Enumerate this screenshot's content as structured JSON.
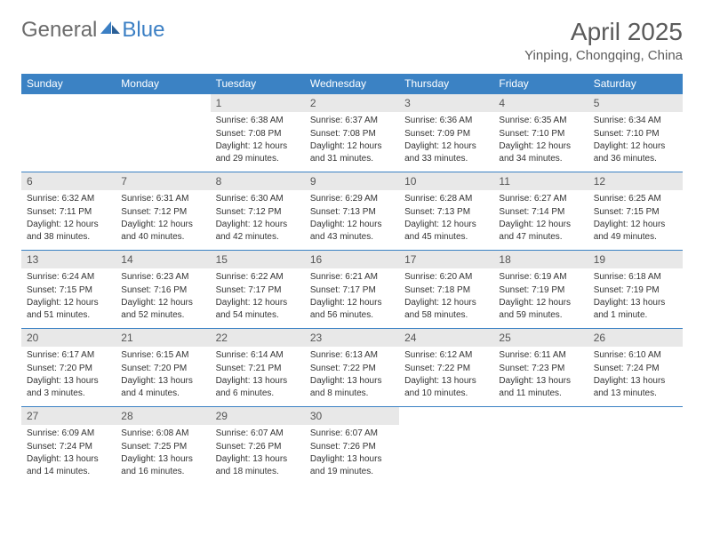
{
  "logo": {
    "text1": "General",
    "text2": "Blue"
  },
  "title": "April 2025",
  "location": "Yinping, Chongqing, China",
  "colors": {
    "header_bg": "#3b82c4",
    "header_text": "#ffffff",
    "daynum_bg": "#e8e8e8",
    "row_border": "#3b82c4",
    "logo_gray": "#6b6b6b",
    "logo_blue": "#3b7fc4"
  },
  "weekdays": [
    "Sunday",
    "Monday",
    "Tuesday",
    "Wednesday",
    "Thursday",
    "Friday",
    "Saturday"
  ],
  "weeks": [
    [
      {
        "empty": true
      },
      {
        "empty": true
      },
      {
        "day": "1",
        "sunrise": "Sunrise: 6:38 AM",
        "sunset": "Sunset: 7:08 PM",
        "daylight": "Daylight: 12 hours and 29 minutes."
      },
      {
        "day": "2",
        "sunrise": "Sunrise: 6:37 AM",
        "sunset": "Sunset: 7:08 PM",
        "daylight": "Daylight: 12 hours and 31 minutes."
      },
      {
        "day": "3",
        "sunrise": "Sunrise: 6:36 AM",
        "sunset": "Sunset: 7:09 PM",
        "daylight": "Daylight: 12 hours and 33 minutes."
      },
      {
        "day": "4",
        "sunrise": "Sunrise: 6:35 AM",
        "sunset": "Sunset: 7:10 PM",
        "daylight": "Daylight: 12 hours and 34 minutes."
      },
      {
        "day": "5",
        "sunrise": "Sunrise: 6:34 AM",
        "sunset": "Sunset: 7:10 PM",
        "daylight": "Daylight: 12 hours and 36 minutes."
      }
    ],
    [
      {
        "day": "6",
        "sunrise": "Sunrise: 6:32 AM",
        "sunset": "Sunset: 7:11 PM",
        "daylight": "Daylight: 12 hours and 38 minutes."
      },
      {
        "day": "7",
        "sunrise": "Sunrise: 6:31 AM",
        "sunset": "Sunset: 7:12 PM",
        "daylight": "Daylight: 12 hours and 40 minutes."
      },
      {
        "day": "8",
        "sunrise": "Sunrise: 6:30 AM",
        "sunset": "Sunset: 7:12 PM",
        "daylight": "Daylight: 12 hours and 42 minutes."
      },
      {
        "day": "9",
        "sunrise": "Sunrise: 6:29 AM",
        "sunset": "Sunset: 7:13 PM",
        "daylight": "Daylight: 12 hours and 43 minutes."
      },
      {
        "day": "10",
        "sunrise": "Sunrise: 6:28 AM",
        "sunset": "Sunset: 7:13 PM",
        "daylight": "Daylight: 12 hours and 45 minutes."
      },
      {
        "day": "11",
        "sunrise": "Sunrise: 6:27 AM",
        "sunset": "Sunset: 7:14 PM",
        "daylight": "Daylight: 12 hours and 47 minutes."
      },
      {
        "day": "12",
        "sunrise": "Sunrise: 6:25 AM",
        "sunset": "Sunset: 7:15 PM",
        "daylight": "Daylight: 12 hours and 49 minutes."
      }
    ],
    [
      {
        "day": "13",
        "sunrise": "Sunrise: 6:24 AM",
        "sunset": "Sunset: 7:15 PM",
        "daylight": "Daylight: 12 hours and 51 minutes."
      },
      {
        "day": "14",
        "sunrise": "Sunrise: 6:23 AM",
        "sunset": "Sunset: 7:16 PM",
        "daylight": "Daylight: 12 hours and 52 minutes."
      },
      {
        "day": "15",
        "sunrise": "Sunrise: 6:22 AM",
        "sunset": "Sunset: 7:17 PM",
        "daylight": "Daylight: 12 hours and 54 minutes."
      },
      {
        "day": "16",
        "sunrise": "Sunrise: 6:21 AM",
        "sunset": "Sunset: 7:17 PM",
        "daylight": "Daylight: 12 hours and 56 minutes."
      },
      {
        "day": "17",
        "sunrise": "Sunrise: 6:20 AM",
        "sunset": "Sunset: 7:18 PM",
        "daylight": "Daylight: 12 hours and 58 minutes."
      },
      {
        "day": "18",
        "sunrise": "Sunrise: 6:19 AM",
        "sunset": "Sunset: 7:19 PM",
        "daylight": "Daylight: 12 hours and 59 minutes."
      },
      {
        "day": "19",
        "sunrise": "Sunrise: 6:18 AM",
        "sunset": "Sunset: 7:19 PM",
        "daylight": "Daylight: 13 hours and 1 minute."
      }
    ],
    [
      {
        "day": "20",
        "sunrise": "Sunrise: 6:17 AM",
        "sunset": "Sunset: 7:20 PM",
        "daylight": "Daylight: 13 hours and 3 minutes."
      },
      {
        "day": "21",
        "sunrise": "Sunrise: 6:15 AM",
        "sunset": "Sunset: 7:20 PM",
        "daylight": "Daylight: 13 hours and 4 minutes."
      },
      {
        "day": "22",
        "sunrise": "Sunrise: 6:14 AM",
        "sunset": "Sunset: 7:21 PM",
        "daylight": "Daylight: 13 hours and 6 minutes."
      },
      {
        "day": "23",
        "sunrise": "Sunrise: 6:13 AM",
        "sunset": "Sunset: 7:22 PM",
        "daylight": "Daylight: 13 hours and 8 minutes."
      },
      {
        "day": "24",
        "sunrise": "Sunrise: 6:12 AM",
        "sunset": "Sunset: 7:22 PM",
        "daylight": "Daylight: 13 hours and 10 minutes."
      },
      {
        "day": "25",
        "sunrise": "Sunrise: 6:11 AM",
        "sunset": "Sunset: 7:23 PM",
        "daylight": "Daylight: 13 hours and 11 minutes."
      },
      {
        "day": "26",
        "sunrise": "Sunrise: 6:10 AM",
        "sunset": "Sunset: 7:24 PM",
        "daylight": "Daylight: 13 hours and 13 minutes."
      }
    ],
    [
      {
        "day": "27",
        "sunrise": "Sunrise: 6:09 AM",
        "sunset": "Sunset: 7:24 PM",
        "daylight": "Daylight: 13 hours and 14 minutes."
      },
      {
        "day": "28",
        "sunrise": "Sunrise: 6:08 AM",
        "sunset": "Sunset: 7:25 PM",
        "daylight": "Daylight: 13 hours and 16 minutes."
      },
      {
        "day": "29",
        "sunrise": "Sunrise: 6:07 AM",
        "sunset": "Sunset: 7:26 PM",
        "daylight": "Daylight: 13 hours and 18 minutes."
      },
      {
        "day": "30",
        "sunrise": "Sunrise: 6:07 AM",
        "sunset": "Sunset: 7:26 PM",
        "daylight": "Daylight: 13 hours and 19 minutes."
      },
      {
        "empty": true
      },
      {
        "empty": true
      },
      {
        "empty": true
      }
    ]
  ]
}
